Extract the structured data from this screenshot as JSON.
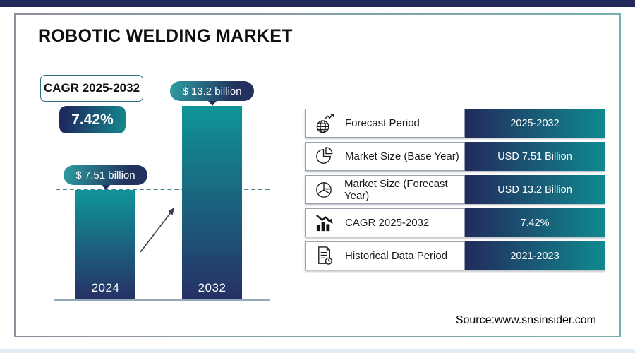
{
  "page": {
    "title": "ROBOTIC WELDING MARKET",
    "source": "Source:www.snsinsider.com"
  },
  "cagr": {
    "label": "CAGR 2025-2032",
    "value": "7.42%"
  },
  "chart_data": {
    "type": "bar",
    "categories": [
      "2024",
      "2032"
    ],
    "values": [
      7.51,
      13.2
    ],
    "unit": "USD billion",
    "bar_labels": [
      "$ 7.51 billion",
      "$ 13.2 billion"
    ],
    "title": "",
    "xlabel": "",
    "ylabel": "",
    "ylim": [
      0,
      13.2
    ],
    "grid": false,
    "annotations": [
      "dashed reference line at 2024 bar top",
      "growth arrow between bars"
    ]
  },
  "table": {
    "rows": [
      {
        "icon": "globe-growth-icon",
        "label": "Forecast Period",
        "value": "2025-2032"
      },
      {
        "icon": "pie-chart-icon",
        "label": "Market Size (Base Year)",
        "value": "USD 7.51 Billion"
      },
      {
        "icon": "pie-chart-exploded-icon",
        "label": "Market Size (Forecast Year)",
        "value": "USD 13.2 Billion"
      },
      {
        "icon": "bar-chart-arrow-icon",
        "label": "CAGR 2025-2032",
        "value": "7.42%"
      },
      {
        "icon": "document-clock-icon",
        "label": "Historical Data Period",
        "value": "2021-2023"
      }
    ]
  },
  "colors": {
    "navy": "#222859",
    "teal": "#10898f",
    "bar_gradient_top": "#0f9598",
    "bar_gradient_bottom": "#263064",
    "border_gray": "#8f8f9f",
    "border_teal": "#79b0ad"
  }
}
